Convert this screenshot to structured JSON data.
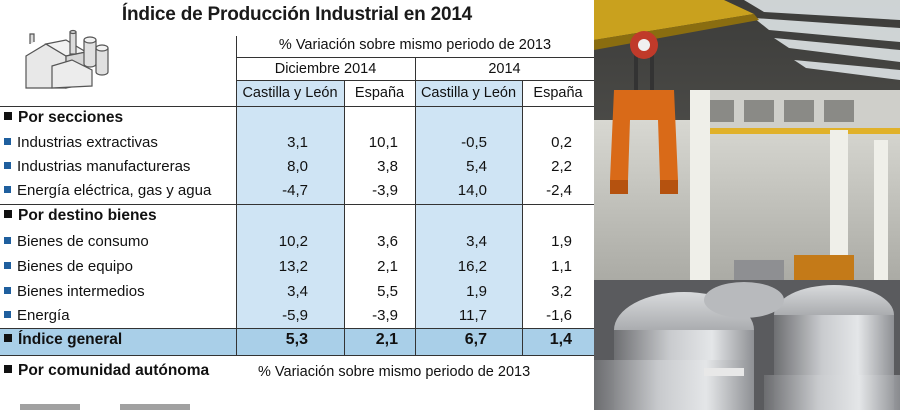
{
  "title": "Índice de Producción Industrial en 2014",
  "header": {
    "variation": "% Variación sobre mismo periodo de 2013",
    "period1": "Diciembre 2014",
    "period2": "2014",
    "cols": [
      "Castilla y León",
      "España",
      "Castilla y León",
      "España"
    ]
  },
  "sections": {
    "secciones": "Por secciones",
    "destino": "Por destino bienes",
    "comunidad": "Por comunidad autónoma",
    "comunidad_note": "% Variación sobre mismo periodo de 2013"
  },
  "rows": [
    {
      "label": "Industrias extractivas",
      "v": [
        "3,1",
        "10,1",
        "-0,5",
        "0,2"
      ]
    },
    {
      "label": "Industrias manufactureras",
      "v": [
        "8,0",
        "3,8",
        "5,4",
        "2,2"
      ]
    },
    {
      "label": "Energía eléctrica, gas y agua",
      "v": [
        "-4,7",
        "-3,9",
        "14,0",
        "-2,4"
      ]
    },
    {
      "label": "Bienes de consumo",
      "v": [
        "10,2",
        "3,6",
        "3,4",
        "1,9"
      ]
    },
    {
      "label": "Bienes de equipo",
      "v": [
        "13,2",
        "2,1",
        "16,2",
        "1,1"
      ]
    },
    {
      "label": "Bienes intermedios",
      "v": [
        "3,4",
        "5,5",
        "1,9",
        "3,2"
      ]
    },
    {
      "label": "Energía",
      "v": [
        "-5,9",
        "-3,9",
        "11,7",
        "-1,6"
      ]
    }
  ],
  "total": {
    "label": "Índice general",
    "v": [
      "5,3",
      "2,1",
      "6,7",
      "1,4"
    ]
  },
  "colors": {
    "accent_blue": "#1f5f9e",
    "column_bg": "#cfe4f4",
    "total_bg": "#a9cfe8"
  }
}
